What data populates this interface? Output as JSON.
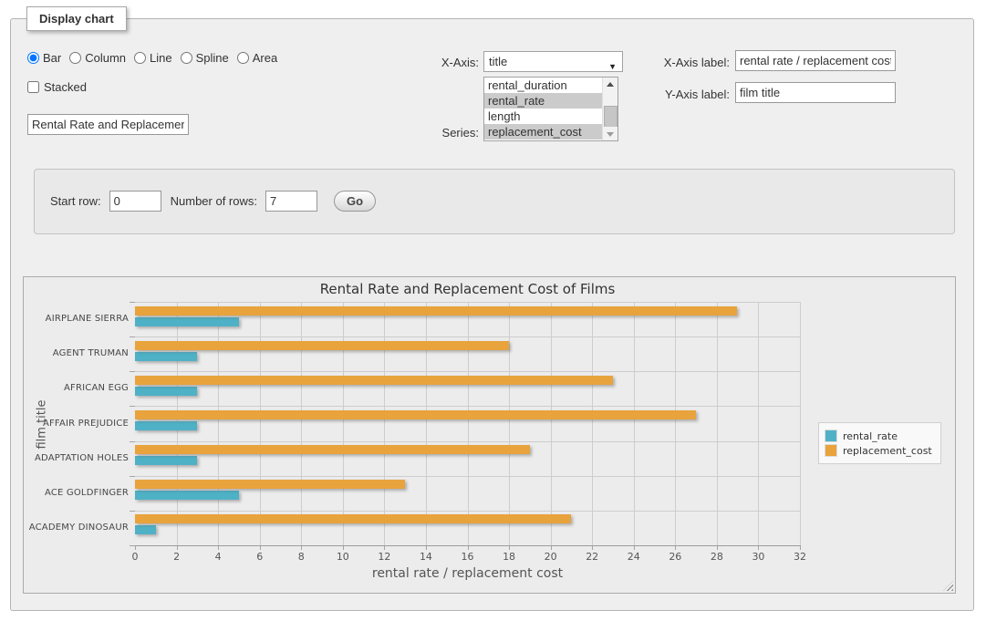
{
  "fieldset": {
    "legend": "Display chart"
  },
  "controls": {
    "chart_types": [
      {
        "label": "Bar",
        "checked": true
      },
      {
        "label": "Column",
        "checked": false
      },
      {
        "label": "Line",
        "checked": false
      },
      {
        "label": "Spline",
        "checked": false
      },
      {
        "label": "Area",
        "checked": false
      }
    ],
    "stacked": {
      "label": "Stacked",
      "checked": false
    },
    "chart_title_input": {
      "value": "Rental Rate and Replacement Cost of Films"
    },
    "x_axis": {
      "label": "X-Axis:",
      "selected": "title"
    },
    "series_picker": {
      "label": "Series:",
      "options": [
        {
          "label": "rental_duration",
          "selected": false
        },
        {
          "label": "rental_rate",
          "selected": true
        },
        {
          "label": "length",
          "selected": false
        },
        {
          "label": "replacement_cost",
          "selected": true
        }
      ]
    },
    "x_axis_label_field": {
      "label": "X-Axis label:",
      "value": "rental rate / replacement cost"
    },
    "y_axis_label_field": {
      "label": "Y-Axis label:",
      "value": "film title"
    }
  },
  "row_controls": {
    "start_row_label": "Start row:",
    "start_row_value": "0",
    "num_rows_label": "Number of rows:",
    "num_rows_value": "7",
    "go_label": "Go"
  },
  "chart_data": {
    "type": "bar",
    "title": "Rental Rate and Replacement Cost of Films",
    "categories": [
      "AIRPLANE SIERRA",
      "AGENT TRUMAN",
      "AFRICAN EGG",
      "AFFAIR PREJUDICE",
      "ADAPTATION HOLES",
      "ACE GOLDFINGER",
      "ACADEMY DINOSAUR"
    ],
    "series": [
      {
        "name": "rental_rate",
        "color": "#4FB1C6",
        "values": [
          4.99,
          2.99,
          2.99,
          2.99,
          2.99,
          4.99,
          0.99
        ]
      },
      {
        "name": "replacement_cost",
        "color": "#E8A33C",
        "values": [
          28.99,
          17.99,
          22.99,
          26.99,
          18.99,
          12.99,
          20.99
        ]
      }
    ],
    "xlabel": "rental rate / replacement cost",
    "ylabel": "film title",
    "xlim": [
      0,
      32
    ],
    "xticks": [
      0,
      2,
      4,
      6,
      8,
      10,
      12,
      14,
      16,
      18,
      20,
      22,
      24,
      26,
      28,
      30,
      32
    ],
    "grid": true,
    "legend_position": "right",
    "draw_order": [
      "replacement_cost",
      "rental_rate"
    ]
  }
}
